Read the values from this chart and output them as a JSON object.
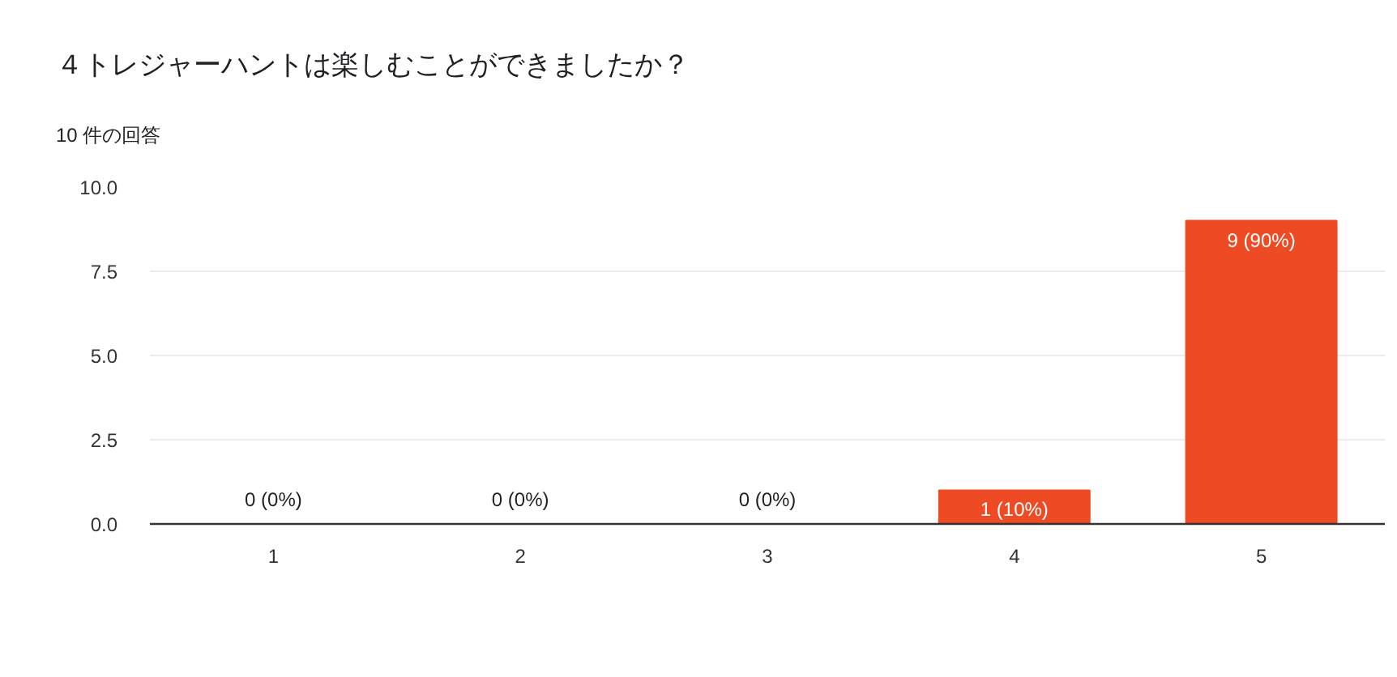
{
  "chart_data": {
    "type": "bar",
    "title": "４トレジャーハントは楽しむことができましたか？",
    "subtitle": "10 件の回答",
    "categories": [
      "1",
      "2",
      "3",
      "4",
      "5"
    ],
    "values": [
      0,
      0,
      0,
      1,
      9
    ],
    "color": "#ee4a24",
    "value_labels": [
      "0 (0%)",
      "0 (0%)",
      "0 (0%)",
      "1 (10%)",
      "9 (90%)"
    ],
    "ylim": [
      0,
      10
    ],
    "yticks": [
      {
        "value": 0,
        "label": "0.0"
      },
      {
        "value": 2.5,
        "label": "2.5"
      },
      {
        "value": 5,
        "label": "5.0"
      },
      {
        "value": 7.5,
        "label": "7.5"
      },
      {
        "value": 10,
        "label": "10.0"
      }
    ],
    "grid": "y"
  }
}
